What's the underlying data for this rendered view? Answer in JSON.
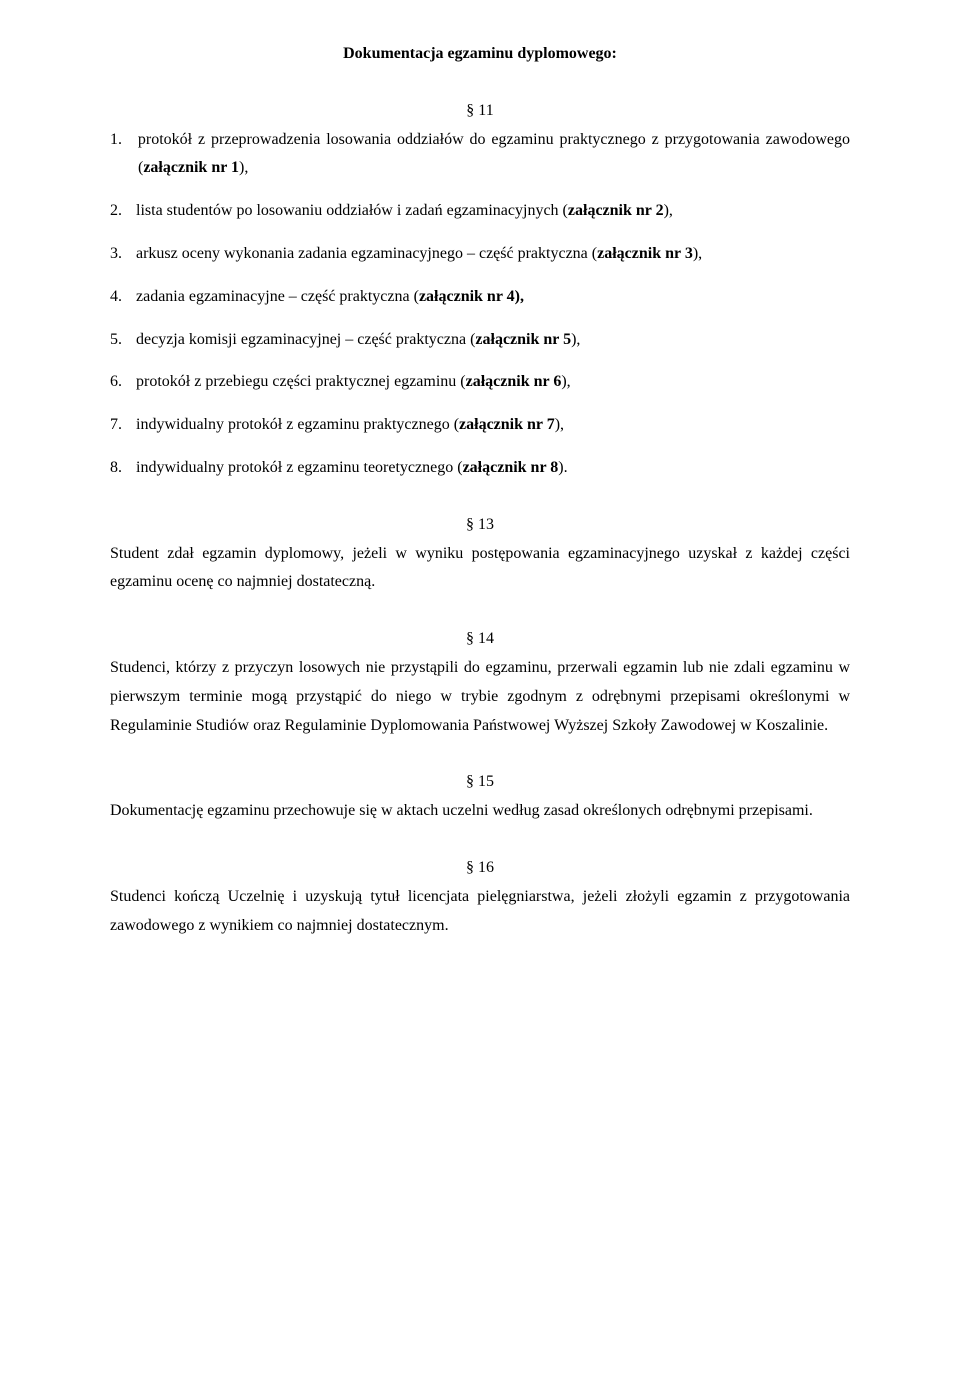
{
  "title": "Dokumentacja egzaminu dyplomowego:",
  "sec11": {
    "num": "§ 11",
    "items": [
      {
        "n": "1.",
        "pre": "protokół z przeprowadzenia losowania oddziałów do egzaminu praktycznego z przygotowania zawodowego (",
        "bold": "załącznik nr 1",
        "post": "),"
      },
      {
        "n": "2.",
        "pre": "lista studentów po losowaniu oddziałów i zadań egzaminacyjnych (",
        "bold": "załącznik nr 2",
        "post": "),"
      },
      {
        "n": "3.",
        "pre": "arkusz oceny wykonania zadania egzaminacyjnego – część praktyczna (",
        "bold": "załącznik nr 3",
        "post": "),"
      },
      {
        "n": "4.",
        "pre": "zadania egzaminacyjne – część praktyczna (",
        "bold": "załącznik nr 4),",
        "post": ""
      },
      {
        "n": "5.",
        "pre": "decyzja komisji egzaminacyjnej – część praktyczna (",
        "bold": "załącznik nr 5",
        "post": "),"
      },
      {
        "n": "6.",
        "pre": "protokół z przebiegu części praktycznej egzaminu (",
        "bold": "załącznik nr 6",
        "post": "),"
      },
      {
        "n": "7.",
        "pre": "indywidualny protokół z egzaminu praktycznego (",
        "bold": "załącznik nr 7",
        "post": "),"
      },
      {
        "n": "8.",
        "pre": "indywidualny protokół z egzaminu teoretycznego (",
        "bold": "załącznik nr 8",
        "post": ")."
      }
    ]
  },
  "sec13": {
    "num": "§ 13",
    "text": "Student zdał egzamin dyplomowy, jeżeli w wyniku postępowania egzaminacyjnego uzyskał z każdej części egzaminu ocenę co najmniej dostateczną."
  },
  "sec14": {
    "num": "§ 14",
    "text": "Studenci, którzy z przyczyn losowych nie przystąpili do egzaminu, przerwali egzamin lub nie zdali egzaminu w pierwszym terminie mogą przystąpić do niego w trybie zgodnym z odrębnymi przepisami określonymi w Regulaminie Studiów oraz Regulaminie Dyplomowania Państwowej Wyższej Szkoły Zawodowej w Koszalinie."
  },
  "sec15": {
    "num": "§ 15",
    "text": "Dokumentację egzaminu przechowuje się w aktach uczelni według zasad określonych odrębnymi przepisami."
  },
  "sec16": {
    "num": "§ 16",
    "text": "Studenci kończą Uczelnię i uzyskują tytuł licencjata pielęgniarstwa, jeżeli złożyli egzamin z przygotowania zawodowego z wynikiem co najmniej dostatecznym."
  }
}
